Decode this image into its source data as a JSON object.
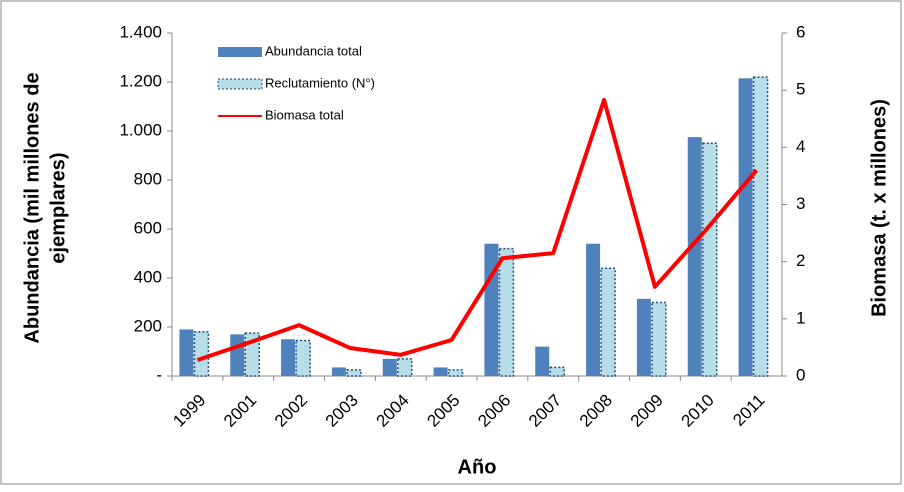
{
  "chart_data": {
    "type": "bar-line",
    "xlabel": "Año",
    "ylabel": [
      "Abundancia (mil millones de",
      "ejemplares)"
    ],
    "y2label": "Biomasa (t. x millones)",
    "categories": [
      "1999",
      "2001",
      "2002",
      "2003",
      "2004",
      "2005",
      "2006",
      "2007",
      "2008",
      "2009",
      "2010",
      "2011"
    ],
    "series": [
      {
        "name": "Abundancia  total",
        "type": "bar",
        "color": "#4f81bd",
        "values": [
          190,
          170,
          150,
          35,
          70,
          35,
          540,
          120,
          540,
          315,
          975,
          1215
        ]
      },
      {
        "name": "Reclutamiento (N°)",
        "type": "bar",
        "color": "#b7dde8",
        "values": [
          180,
          175,
          145,
          25,
          70,
          25,
          520,
          35,
          440,
          300,
          950,
          1220
        ]
      },
      {
        "name": "Biomasa total",
        "type": "line",
        "axis": "y2",
        "color": "#ff0000",
        "values": [
          0.28,
          0.58,
          0.89,
          0.49,
          0.37,
          0.63,
          2.06,
          2.15,
          4.83,
          1.56,
          2.55,
          3.6
        ]
      }
    ],
    "ylim": [
      0,
      1400
    ],
    "yticks": [
      {
        "value": 0,
        "label": "-"
      },
      200,
      400,
      600,
      800,
      {
        "value": 1000,
        "label": "1.000"
      },
      {
        "value": 1200,
        "label": "1.200"
      },
      {
        "value": 1400,
        "label": "1.400"
      }
    ],
    "y2lim": [
      0,
      6
    ],
    "y2ticks": [
      0,
      1,
      2,
      3,
      4,
      5,
      6
    ]
  }
}
